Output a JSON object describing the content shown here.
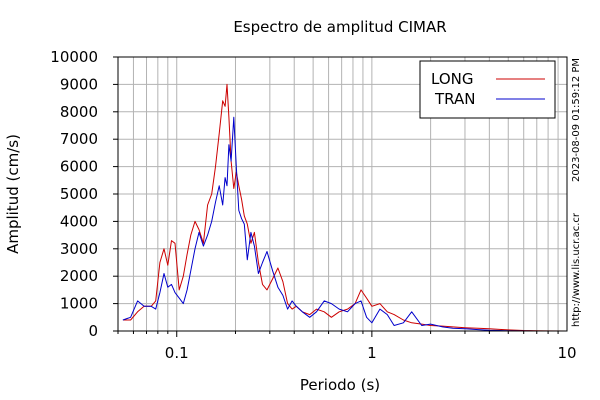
{
  "chart_data": {
    "type": "line",
    "title": "Espectro de amplitud CIMAR",
    "xlabel": "Periodo (s)",
    "ylabel": "Amplitud (cm/s)",
    "x_scale": "log",
    "xlim": [
      0.05,
      10
    ],
    "ylim": [
      0,
      10000
    ],
    "x_ticks": [
      0.1,
      1,
      10
    ],
    "x_tick_labels": [
      "0.1",
      "1",
      "10"
    ],
    "y_ticks": [
      0,
      1000,
      2000,
      3000,
      4000,
      5000,
      6000,
      7000,
      8000,
      9000,
      10000
    ],
    "y_tick_labels": [
      "0",
      "1000",
      "2000",
      "3000",
      "4000",
      "5000",
      "6000",
      "7000",
      "8000",
      "9000",
      "10000"
    ],
    "grid": true,
    "legend_position": "top-right",
    "series": [
      {
        "name": "LONG",
        "color": "#cc0000",
        "x": [
          0.053,
          0.058,
          0.063,
          0.068,
          0.074,
          0.078,
          0.082,
          0.086,
          0.09,
          0.094,
          0.098,
          0.103,
          0.108,
          0.113,
          0.118,
          0.124,
          0.13,
          0.137,
          0.144,
          0.151,
          0.158,
          0.165,
          0.172,
          0.177,
          0.181,
          0.185,
          0.19,
          0.196,
          0.202,
          0.208,
          0.215,
          0.222,
          0.23,
          0.24,
          0.25,
          0.262,
          0.275,
          0.29,
          0.31,
          0.33,
          0.35,
          0.37,
          0.39,
          0.41,
          0.44,
          0.48,
          0.52,
          0.57,
          0.62,
          0.68,
          0.75,
          0.82,
          0.88,
          0.94,
          1.0,
          1.1,
          1.2,
          1.3,
          1.45,
          1.6,
          1.8,
          2.0,
          2.3,
          2.6,
          3.0,
          3.5,
          4.0,
          4.5,
          5.0,
          6.0,
          7.0,
          8.0,
          10.0
        ],
        "values": [
          400,
          400,
          700,
          900,
          900,
          1100,
          2500,
          3000,
          2400,
          3300,
          3200,
          1500,
          2000,
          2800,
          3500,
          4000,
          3700,
          3200,
          4600,
          5000,
          6000,
          7200,
          8400,
          8200,
          9000,
          7800,
          6200,
          5200,
          5800,
          5300,
          4800,
          4200,
          3900,
          3200,
          3600,
          2500,
          1700,
          1500,
          1900,
          2300,
          1800,
          1000,
          800,
          900,
          700,
          600,
          800,
          700,
          500,
          700,
          800,
          1000,
          1500,
          1200,
          900,
          1000,
          700,
          600,
          400,
          300,
          250,
          200,
          180,
          150,
          120,
          100,
          80,
          60,
          40,
          20,
          10,
          5,
          0
        ]
      },
      {
        "name": "TRAN",
        "color": "#0000cc",
        "x": [
          0.053,
          0.058,
          0.063,
          0.068,
          0.074,
          0.078,
          0.082,
          0.086,
          0.09,
          0.094,
          0.098,
          0.103,
          0.108,
          0.113,
          0.118,
          0.124,
          0.13,
          0.137,
          0.144,
          0.151,
          0.158,
          0.165,
          0.172,
          0.177,
          0.181,
          0.185,
          0.19,
          0.196,
          0.202,
          0.208,
          0.215,
          0.222,
          0.23,
          0.24,
          0.25,
          0.262,
          0.275,
          0.29,
          0.31,
          0.33,
          0.35,
          0.37,
          0.39,
          0.41,
          0.44,
          0.48,
          0.52,
          0.57,
          0.62,
          0.68,
          0.75,
          0.82,
          0.88,
          0.94,
          1.0,
          1.1,
          1.2,
          1.3,
          1.45,
          1.6,
          1.8,
          2.0,
          2.3,
          2.6,
          3.0,
          3.5,
          4.0,
          4.5,
          5.0,
          6.0,
          7.0,
          8.0,
          10.0
        ],
        "values": [
          400,
          500,
          1100,
          900,
          900,
          800,
          1400,
          2100,
          1600,
          1700,
          1400,
          1200,
          1000,
          1500,
          2200,
          3000,
          3600,
          3100,
          3500,
          4000,
          4700,
          5300,
          4600,
          5600,
          5300,
          6800,
          6200,
          7800,
          6000,
          4400,
          4100,
          3900,
          2600,
          3600,
          3100,
          2100,
          2500,
          2900,
          2200,
          1600,
          1300,
          800,
          1100,
          900,
          700,
          500,
          700,
          1100,
          1000,
          800,
          700,
          1000,
          1100,
          500,
          300,
          800,
          600,
          200,
          300,
          700,
          200,
          250,
          150,
          100,
          80,
          50,
          30,
          20,
          10,
          5,
          0,
          0,
          0
        ]
      }
    ]
  },
  "side": {
    "timestamp": "2023-08-09 01:59:12 PM",
    "url": "http://www.lis.ucr.ac.cr"
  }
}
